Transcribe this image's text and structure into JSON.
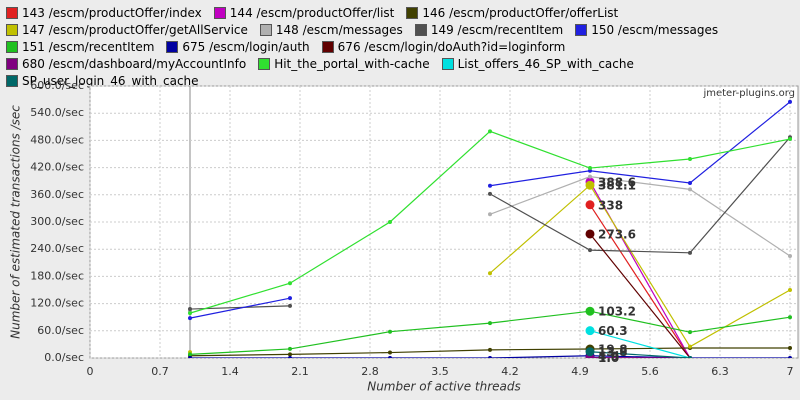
{
  "chart_data": {
    "type": "line",
    "watermark": "jmeter-plugins.org",
    "x_label": "Number of active threads",
    "y_label": "Number of estimated transactions /sec",
    "x": [
      1,
      2,
      3,
      4,
      5,
      6,
      7
    ],
    "xlim": [
      0,
      7.08
    ],
    "xticks": [
      0,
      0.7,
      1.4,
      2.1,
      2.8,
      3.5,
      4.2,
      4.9,
      5.6,
      6.3,
      7
    ],
    "ylim": [
      0,
      600
    ],
    "yticks": [
      {
        "value": 0,
        "label": "0.0/sec"
      },
      {
        "value": 60,
        "label": "60.0/sec"
      },
      {
        "value": 120,
        "label": "120.0/sec"
      },
      {
        "value": 180,
        "label": "180.0/sec"
      },
      {
        "value": 240,
        "label": "240.0/sec"
      },
      {
        "value": 300,
        "label": "300.0/sec"
      },
      {
        "value": 360,
        "label": "360.0/sec"
      },
      {
        "value": 420,
        "label": "420.0/sec"
      },
      {
        "value": 480,
        "label": "480.0/sec"
      },
      {
        "value": 540,
        "label": "540.0/sec"
      },
      {
        "value": 600,
        "label": "600.0/sec"
      }
    ],
    "grid": true,
    "series": [
      {
        "name": "143 /escm/productOffer/index",
        "color": "#e02020",
        "values": [
          null,
          null,
          null,
          null,
          338,
          0,
          null
        ],
        "value_labels": [
          null,
          null,
          null,
          null,
          "338",
          null,
          null
        ]
      },
      {
        "name": "144 /escm/productOffer/list",
        "color": "#c000c0",
        "values": [
          null,
          null,
          null,
          null,
          388.6,
          0,
          null
        ],
        "value_labels": [
          null,
          null,
          null,
          null,
          "388.6",
          null,
          null
        ]
      },
      {
        "name": "146 /escm/productOffer/offerList",
        "color": "#404000",
        "values": [
          5,
          8,
          12,
          18,
          19.8,
          22,
          22
        ],
        "value_labels": [
          null,
          null,
          null,
          null,
          "19.8",
          null,
          null
        ]
      },
      {
        "name": "147 /escm/productOffer/getAllService",
        "color": "#c0c000",
        "values": [
          13,
          null,
          null,
          187,
          381.1,
          25,
          150
        ],
        "value_labels": [
          null,
          null,
          null,
          null,
          "381.1",
          null,
          null
        ]
      },
      {
        "name": "148 /escm/messages",
        "color": "#b0b0b0",
        "values": [
          103,
          null,
          null,
          317,
          400,
          372,
          225
        ]
      },
      {
        "name": "149 /escm/recentItem",
        "color": "#505050",
        "values": [
          108,
          115,
          null,
          362,
          238,
          232,
          487
        ]
      },
      {
        "name": "150 /escm/messages",
        "color": "#2020e0",
        "values": [
          88,
          132,
          null,
          380,
          413,
          386,
          565
        ]
      },
      {
        "name": "151 /escm/recentItem",
        "color": "#20c020",
        "values": [
          8,
          20,
          58,
          77,
          103.2,
          57,
          90
        ],
        "value_labels": [
          null,
          null,
          null,
          null,
          "103.2",
          null,
          null
        ]
      },
      {
        "name": "675 /escm/login/auth",
        "color": "#0000a0",
        "values": [
          0,
          0,
          0,
          0,
          4.9,
          0,
          0
        ],
        "value_labels": [
          null,
          null,
          null,
          null,
          "4.9",
          null,
          null
        ]
      },
      {
        "name": "676 /escm/login/doAuth?id=loginform",
        "color": "#600000",
        "values": [
          null,
          null,
          null,
          null,
          273.6,
          0,
          null
        ],
        "value_labels": [
          null,
          null,
          null,
          null,
          "273.6",
          null,
          null
        ]
      },
      {
        "name": "680 /escm/dashboard/myAccountInfo",
        "color": "#800080",
        "values": [
          null,
          null,
          null,
          null,
          1.0,
          0,
          null
        ],
        "value_labels": [
          null,
          null,
          null,
          null,
          "1.0",
          null,
          null
        ]
      },
      {
        "name": "Hit_the_portal_with-cache",
        "color": "#30e030",
        "values": [
          99,
          165,
          300,
          500,
          419,
          439,
          483
        ]
      },
      {
        "name": "List_offers_46_SP_with_cache",
        "color": "#00e0e0",
        "values": [
          null,
          null,
          null,
          null,
          60.3,
          0,
          null
        ],
        "value_labels": [
          null,
          null,
          null,
          null,
          "60.3",
          null,
          null
        ]
      },
      {
        "name": "SP_user_login_46_with_cache",
        "color": "#006868",
        "values": [
          null,
          null,
          null,
          null,
          13.8,
          0,
          null
        ],
        "value_labels": [
          null,
          null,
          null,
          null,
          "13.8",
          null,
          null
        ]
      }
    ]
  }
}
